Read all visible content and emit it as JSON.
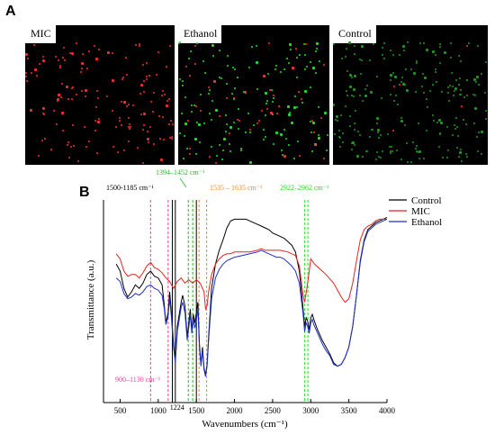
{
  "panel_a": {
    "letter": "A",
    "images": [
      {
        "label": "MIC",
        "dot_color": "#ff2a2a",
        "dot_count": 150,
        "secondary_color": "#22cc22",
        "secondary_count": 0
      },
      {
        "label": "Ethanol",
        "dot_color": "#20e020",
        "dot_count": 140,
        "secondary_color": "#ff3030",
        "secondary_count": 45
      },
      {
        "label": "Control",
        "dot_color": "#1c9a1c",
        "dot_count": 220,
        "secondary_color": "#ff3030",
        "secondary_count": 5
      }
    ]
  },
  "panel_b": {
    "letter": "B"
  },
  "chart_data": {
    "type": "line",
    "xlabel": "Wavenumbers (cm⁻¹)",
    "ylabel": "Transmittance (a.u.)",
    "xlim": [
      400,
      4000
    ],
    "xticks": [
      500,
      1000,
      1500,
      2000,
      2500,
      3000,
      3500,
      4000
    ],
    "ylim": [
      0,
      100
    ],
    "legend_position": "top-right",
    "series": [
      {
        "name": "Control",
        "color": "#000000",
        "points": [
          [
            450,
            66
          ],
          [
            500,
            62
          ],
          [
            550,
            52
          ],
          [
            600,
            47
          ],
          [
            650,
            50
          ],
          [
            700,
            54
          ],
          [
            750,
            52
          ],
          [
            800,
            55
          ],
          [
            850,
            60
          ],
          [
            900,
            62
          ],
          [
            950,
            59
          ],
          [
            1000,
            58
          ],
          [
            1050,
            54
          ],
          [
            1080,
            42
          ],
          [
            1100,
            32
          ],
          [
            1130,
            38
          ],
          [
            1150,
            50
          ],
          [
            1170,
            40
          ],
          [
            1200,
            20
          ],
          [
            1224,
            10
          ],
          [
            1250,
            30
          ],
          [
            1300,
            44
          ],
          [
            1320,
            48
          ],
          [
            1350,
            42
          ],
          [
            1380,
            24
          ],
          [
            1400,
            32
          ],
          [
            1420,
            40
          ],
          [
            1440,
            28
          ],
          [
            1460,
            37
          ],
          [
            1480,
            32
          ],
          [
            1500,
            38
          ],
          [
            1520,
            44
          ],
          [
            1540,
            20
          ],
          [
            1560,
            8
          ],
          [
            1580,
            18
          ],
          [
            1600,
            6
          ],
          [
            1620,
            2
          ],
          [
            1640,
            8
          ],
          [
            1660,
            24
          ],
          [
            1700,
            52
          ],
          [
            1750,
            66
          ],
          [
            1800,
            74
          ],
          [
            1850,
            80
          ],
          [
            1900,
            87
          ],
          [
            1950,
            91
          ],
          [
            2000,
            92
          ],
          [
            2050,
            92
          ],
          [
            2100,
            92
          ],
          [
            2150,
            92
          ],
          [
            2200,
            91
          ],
          [
            2250,
            90
          ],
          [
            2300,
            89
          ],
          [
            2350,
            88
          ],
          [
            2400,
            87
          ],
          [
            2450,
            86
          ],
          [
            2500,
            84
          ],
          [
            2550,
            83
          ],
          [
            2600,
            82
          ],
          [
            2650,
            81
          ],
          [
            2700,
            79
          ],
          [
            2750,
            77
          ],
          [
            2800,
            73
          ],
          [
            2850,
            62
          ],
          [
            2900,
            40
          ],
          [
            2920,
            30
          ],
          [
            2940,
            35
          ],
          [
            2960,
            33
          ],
          [
            2980,
            28
          ],
          [
            3000,
            35
          ],
          [
            3020,
            37
          ],
          [
            3040,
            34
          ],
          [
            3080,
            29
          ],
          [
            3150,
            22
          ],
          [
            3200,
            18
          ],
          [
            3250,
            14
          ],
          [
            3300,
            9
          ],
          [
            3350,
            7
          ],
          [
            3400,
            8
          ],
          [
            3450,
            12
          ],
          [
            3500,
            18
          ],
          [
            3550,
            30
          ],
          [
            3600,
            48
          ],
          [
            3650,
            68
          ],
          [
            3700,
            80
          ],
          [
            3750,
            86
          ],
          [
            3800,
            88
          ],
          [
            3850,
            90
          ],
          [
            3900,
            91
          ],
          [
            3950,
            92
          ],
          [
            4000,
            93
          ]
        ]
      },
      {
        "name": "MIC",
        "color": "#e8231f",
        "points": [
          [
            450,
            72
          ],
          [
            500,
            69
          ],
          [
            550,
            62
          ],
          [
            600,
            59
          ],
          [
            650,
            60
          ],
          [
            700,
            60
          ],
          [
            750,
            58
          ],
          [
            800,
            61
          ],
          [
            850,
            65
          ],
          [
            900,
            67
          ],
          [
            950,
            64
          ],
          [
            1000,
            63
          ],
          [
            1050,
            61
          ],
          [
            1100,
            58
          ],
          [
            1150,
            56
          ],
          [
            1200,
            52
          ],
          [
            1250,
            56
          ],
          [
            1300,
            58
          ],
          [
            1350,
            55
          ],
          [
            1400,
            57
          ],
          [
            1450,
            55
          ],
          [
            1500,
            57
          ],
          [
            1550,
            55
          ],
          [
            1600,
            50
          ],
          [
            1620,
            40
          ],
          [
            1640,
            42
          ],
          [
            1660,
            50
          ],
          [
            1700,
            60
          ],
          [
            1750,
            66
          ],
          [
            1800,
            69
          ],
          [
            1850,
            71
          ],
          [
            1900,
            72
          ],
          [
            1950,
            72
          ],
          [
            2000,
            73
          ],
          [
            2100,
            73
          ],
          [
            2200,
            73
          ],
          [
            2300,
            74
          ],
          [
            2350,
            75
          ],
          [
            2400,
            74
          ],
          [
            2500,
            74
          ],
          [
            2600,
            74
          ],
          [
            2700,
            73
          ],
          [
            2800,
            71
          ],
          [
            2850,
            65
          ],
          [
            2900,
            48
          ],
          [
            2920,
            44
          ],
          [
            2950,
            52
          ],
          [
            2980,
            62
          ],
          [
            3000,
            69
          ],
          [
            3050,
            66
          ],
          [
            3100,
            64
          ],
          [
            3150,
            62
          ],
          [
            3200,
            60
          ],
          [
            3300,
            55
          ],
          [
            3400,
            47
          ],
          [
            3450,
            44
          ],
          [
            3500,
            46
          ],
          [
            3550,
            55
          ],
          [
            3600,
            68
          ],
          [
            3650,
            80
          ],
          [
            3700,
            86
          ],
          [
            3750,
            88
          ],
          [
            3800,
            89
          ],
          [
            3850,
            91
          ],
          [
            3900,
            92
          ],
          [
            3950,
            92
          ],
          [
            4000,
            92
          ]
        ]
      },
      {
        "name": "Ethanol",
        "color": "#1f2fd0",
        "points": [
          [
            450,
            58
          ],
          [
            500,
            56
          ],
          [
            550,
            49
          ],
          [
            600,
            46
          ],
          [
            650,
            47
          ],
          [
            700,
            49
          ],
          [
            750,
            48
          ],
          [
            800,
            50
          ],
          [
            850,
            53
          ],
          [
            900,
            54
          ],
          [
            950,
            52
          ],
          [
            1000,
            51
          ],
          [
            1050,
            48
          ],
          [
            1080,
            40
          ],
          [
            1100,
            31
          ],
          [
            1130,
            36
          ],
          [
            1150,
            46
          ],
          [
            1170,
            37
          ],
          [
            1200,
            18
          ],
          [
            1224,
            9
          ],
          [
            1250,
            27
          ],
          [
            1300,
            41
          ],
          [
            1320,
            44
          ],
          [
            1350,
            38
          ],
          [
            1380,
            22
          ],
          [
            1400,
            29
          ],
          [
            1420,
            37
          ],
          [
            1440,
            26
          ],
          [
            1460,
            34
          ],
          [
            1480,
            29
          ],
          [
            1500,
            34
          ],
          [
            1520,
            40
          ],
          [
            1540,
            18
          ],
          [
            1560,
            7
          ],
          [
            1580,
            16
          ],
          [
            1600,
            5
          ],
          [
            1620,
            1
          ],
          [
            1640,
            7
          ],
          [
            1660,
            22
          ],
          [
            1700,
            46
          ],
          [
            1750,
            58
          ],
          [
            1800,
            63
          ],
          [
            1850,
            66
          ],
          [
            1900,
            68
          ],
          [
            1950,
            69
          ],
          [
            2000,
            70
          ],
          [
            2100,
            71
          ],
          [
            2200,
            72
          ],
          [
            2300,
            73
          ],
          [
            2350,
            74
          ],
          [
            2400,
            73
          ],
          [
            2450,
            72
          ],
          [
            2500,
            71
          ],
          [
            2550,
            70
          ],
          [
            2600,
            70
          ],
          [
            2650,
            69
          ],
          [
            2700,
            67
          ],
          [
            2750,
            65
          ],
          [
            2800,
            62
          ],
          [
            2850,
            55
          ],
          [
            2900,
            37
          ],
          [
            2920,
            27
          ],
          [
            2940,
            32
          ],
          [
            2960,
            30
          ],
          [
            2980,
            26
          ],
          [
            3000,
            32
          ],
          [
            3020,
            34
          ],
          [
            3040,
            31
          ],
          [
            3080,
            27
          ],
          [
            3150,
            20
          ],
          [
            3200,
            16
          ],
          [
            3250,
            13
          ],
          [
            3300,
            8
          ],
          [
            3350,
            7
          ],
          [
            3400,
            8
          ],
          [
            3450,
            12
          ],
          [
            3500,
            18
          ],
          [
            3550,
            30
          ],
          [
            3600,
            48
          ],
          [
            3650,
            67
          ],
          [
            3700,
            79
          ],
          [
            3750,
            85
          ],
          [
            3800,
            87
          ],
          [
            3850,
            89
          ],
          [
            3900,
            90
          ],
          [
            3950,
            91
          ],
          [
            4000,
            92
          ]
        ]
      }
    ],
    "bands": [
      {
        "label": "900–1130 cm⁻¹",
        "x": [
          900,
          1130
        ],
        "color": "#e8449a"
      },
      {
        "label": "1224",
        "x": [
          1224
        ],
        "color": "#000000"
      },
      {
        "label": "1500-1185 cm⁻¹",
        "x": [
          1185,
          1500
        ],
        "color": "#000000"
      },
      {
        "label": "1394–1452 cm⁻¹",
        "x": [
          1394,
          1452
        ],
        "color": "#22bb22"
      },
      {
        "label": "1535 – 1635 cm⁻¹",
        "x": [
          1535,
          1635
        ],
        "color": "#f08a2a"
      },
      {
        "label": "2922–2962 cm⁻¹",
        "x": [
          2922,
          2962
        ],
        "color": "#22dd22"
      }
    ]
  }
}
